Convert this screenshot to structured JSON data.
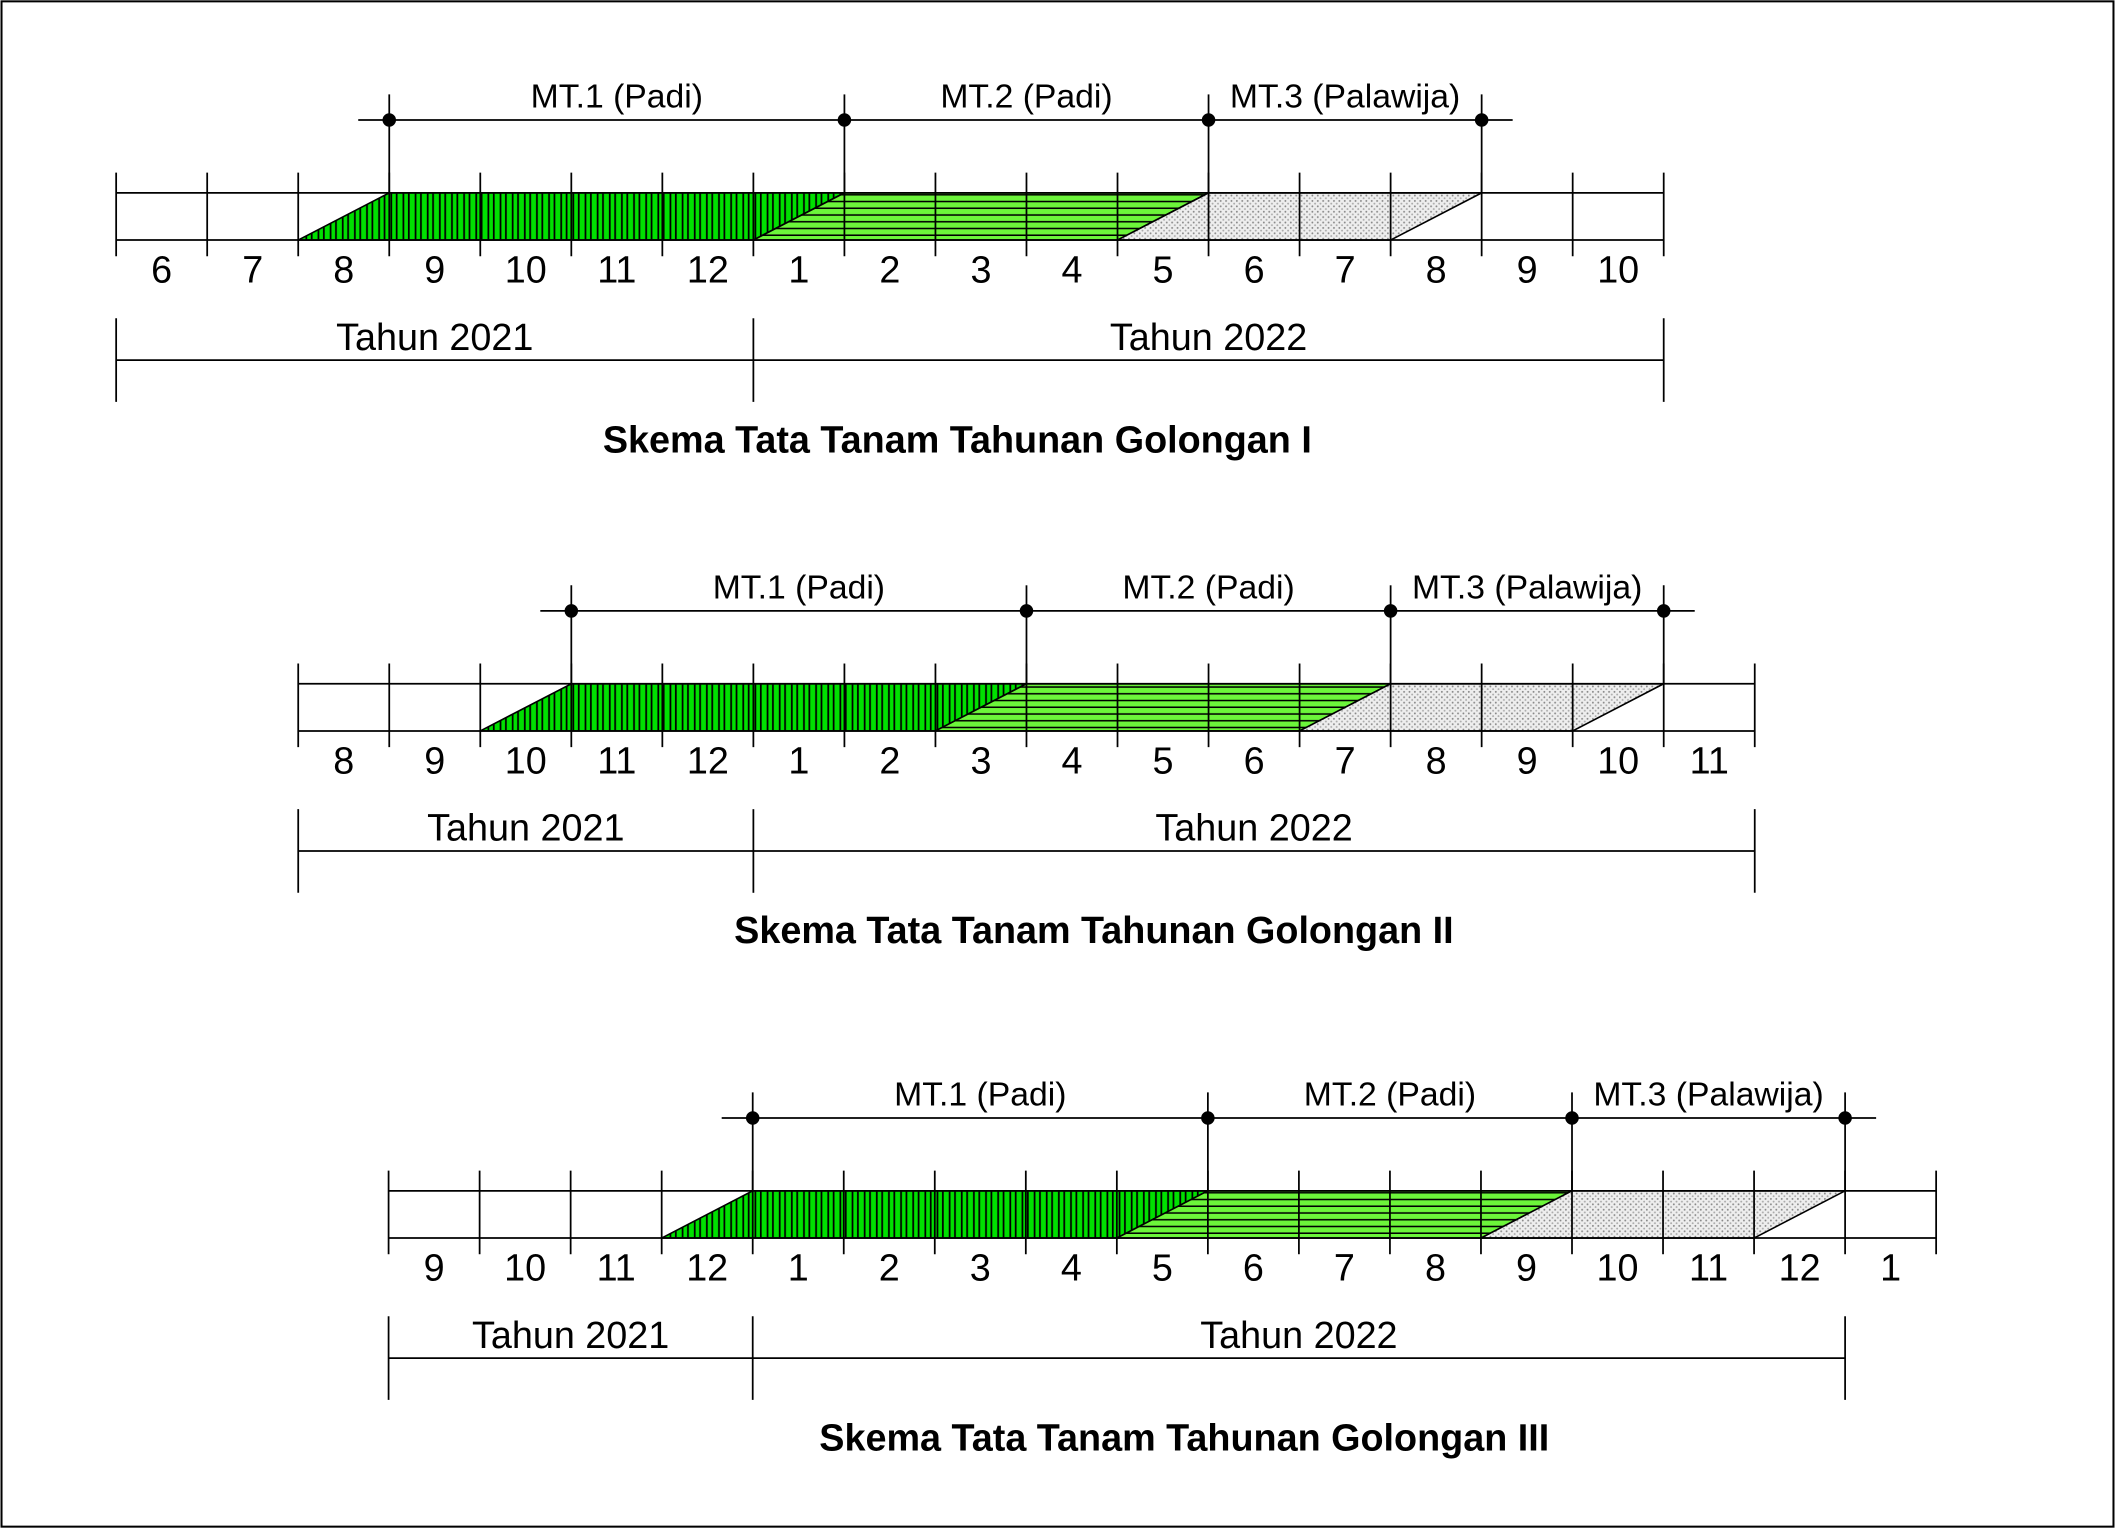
{
  "schemes": [
    {
      "title": "Skema Tata Tanam Tahunan Golongan I",
      "months": [
        "6",
        "7",
        "8",
        "9",
        "10",
        "11",
        "12",
        "1",
        "2",
        "3",
        "4",
        "5",
        "6",
        "7",
        "8",
        "9",
        "10"
      ],
      "seasons": [
        "MT.1 (Padi)",
        "MT.2 (Padi)",
        "MT.3 (Palawija)"
      ],
      "years": [
        "Tahun 2021",
        "Tahun 2022"
      ]
    },
    {
      "title": "Skema Tata Tanam Tahunan Golongan II",
      "months": [
        "8",
        "9",
        "10",
        "11",
        "12",
        "1",
        "2",
        "3",
        "4",
        "5",
        "6",
        "7",
        "8",
        "9",
        "10",
        "11"
      ],
      "seasons": [
        "MT.1 (Padi)",
        "MT.2 (Padi)",
        "MT.3 (Palawija)"
      ],
      "years": [
        "Tahun 2021",
        "Tahun 2022"
      ]
    },
    {
      "title": "Skema Tata Tanam Tahunan Golongan III",
      "months": [
        "9",
        "10",
        "11",
        "12",
        "1",
        "2",
        "3",
        "4",
        "5",
        "6",
        "7",
        "8",
        "9",
        "10",
        "11",
        "12",
        "1"
      ],
      "seasons": [
        "MT.1 (Padi)",
        "MT.2 (Padi)",
        "MT.3 (Palawija)"
      ],
      "years": [
        "Tahun 2021",
        "Tahun 2022"
      ]
    }
  ]
}
